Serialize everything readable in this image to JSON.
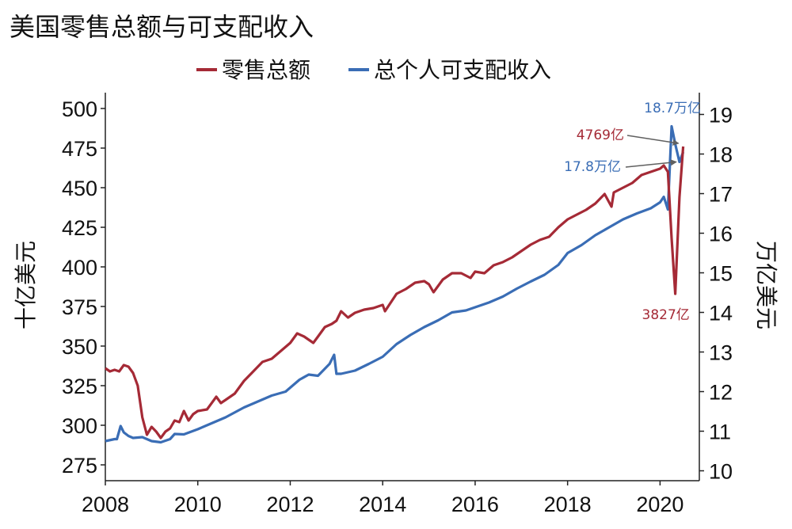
{
  "chart_data": {
    "type": "line",
    "title": "美国零售总额与可支配收入",
    "xlabel": "",
    "ylabel_left": "十亿美元",
    "ylabel_right": "万亿美元",
    "xlim": [
      2008,
      2020.85
    ],
    "ylim_left": [
      265,
      510
    ],
    "ylim_right": [
      9.75,
      19.55
    ],
    "x_ticks": [
      "2008",
      "2010",
      "2012",
      "2014",
      "2016",
      "2018",
      "2020"
    ],
    "y_ticks_left": [
      "275",
      "300",
      "325",
      "350",
      "375",
      "400",
      "425",
      "450",
      "475",
      "500"
    ],
    "y_ticks_right": [
      "10",
      "11",
      "12",
      "13",
      "14",
      "15",
      "16",
      "17",
      "18",
      "19"
    ],
    "legend_placement": "top-center",
    "grid": false,
    "colors": {
      "retail": "#A52A36",
      "income": "#3A6DB5",
      "arrow": "#606060"
    },
    "series": [
      {
        "name": "零售总额",
        "axis": "left",
        "x": [
          2008.0,
          2008.1,
          2008.2,
          2008.3,
          2008.4,
          2008.5,
          2008.6,
          2008.7,
          2008.8,
          2008.9,
          2009.0,
          2009.1,
          2009.2,
          2009.3,
          2009.4,
          2009.5,
          2009.6,
          2009.7,
          2009.8,
          2009.9,
          2010.0,
          2010.2,
          2010.4,
          2010.5,
          2010.6,
          2010.8,
          2011.0,
          2011.2,
          2011.4,
          2011.6,
          2011.8,
          2012.0,
          2012.15,
          2012.3,
          2012.5,
          2012.6,
          2012.75,
          2012.9,
          2013.0,
          2013.1,
          2013.25,
          2013.4,
          2013.6,
          2013.8,
          2014.0,
          2014.05,
          2014.3,
          2014.5,
          2014.7,
          2014.9,
          2015.0,
          2015.1,
          2015.3,
          2015.5,
          2015.7,
          2015.9,
          2016.0,
          2016.2,
          2016.4,
          2016.6,
          2016.8,
          2017.0,
          2017.2,
          2017.4,
          2017.6,
          2017.8,
          2018.0,
          2018.2,
          2018.4,
          2018.6,
          2018.8,
          2018.95,
          2019.0,
          2019.2,
          2019.4,
          2019.6,
          2019.8,
          2020.0,
          2020.08,
          2020.17,
          2020.25,
          2020.33,
          2020.42,
          2020.5
        ],
        "values": [
          336,
          334,
          335,
          334,
          338,
          337,
          333,
          325,
          305,
          294,
          299,
          296,
          292,
          296,
          298,
          303,
          302,
          309,
          303,
          307,
          309,
          310,
          318,
          314,
          316,
          320,
          328,
          334,
          340,
          342,
          347,
          352,
          358,
          356,
          352,
          356,
          362,
          364,
          366,
          372,
          368,
          371,
          373,
          374,
          376,
          372,
          383,
          386,
          390,
          391,
          389,
          384,
          392,
          396,
          396,
          393,
          397,
          396,
          401,
          403,
          406,
          410,
          414,
          417,
          419,
          425,
          430,
          433,
          436,
          440,
          446,
          438,
          447,
          450,
          453,
          458,
          460,
          462,
          464,
          460,
          418,
          383,
          444,
          476
        ]
      },
      {
        "name": "总个人可支配收入",
        "axis": "right",
        "x": [
          2008.0,
          2008.2,
          2008.25,
          2008.33,
          2008.4,
          2008.5,
          2008.6,
          2008.8,
          2009.0,
          2009.2,
          2009.4,
          2009.5,
          2009.7,
          2010.0,
          2010.3,
          2010.6,
          2011.0,
          2011.3,
          2011.6,
          2011.9,
          2012.2,
          2012.4,
          2012.6,
          2012.85,
          2012.95,
          2013.0,
          2013.1,
          2013.4,
          2013.7,
          2014.0,
          2014.3,
          2014.6,
          2014.9,
          2015.2,
          2015.5,
          2015.8,
          2016.0,
          2016.3,
          2016.6,
          2016.9,
          2017.2,
          2017.5,
          2017.8,
          2018.0,
          2018.3,
          2018.6,
          2018.9,
          2019.2,
          2019.5,
          2019.8,
          2020.0,
          2020.08,
          2020.17,
          2020.25,
          2020.33,
          2020.42,
          2020.5
        ],
        "values": [
          10.75,
          10.8,
          10.8,
          11.13,
          10.97,
          10.88,
          10.83,
          10.85,
          10.75,
          10.72,
          10.8,
          10.93,
          10.92,
          11.05,
          11.2,
          11.35,
          11.6,
          11.75,
          11.9,
          12.0,
          12.3,
          12.43,
          12.4,
          12.7,
          12.93,
          12.45,
          12.45,
          12.53,
          12.7,
          12.88,
          13.2,
          13.43,
          13.63,
          13.8,
          14.0,
          14.05,
          14.13,
          14.25,
          14.4,
          14.6,
          14.78,
          14.95,
          15.2,
          15.5,
          15.7,
          15.95,
          16.15,
          16.35,
          16.5,
          16.63,
          16.78,
          16.92,
          16.6,
          18.7,
          18.25,
          17.8,
          18.05
        ]
      }
    ],
    "annotations": [
      {
        "text": "18.7万亿",
        "series": "总个人可支配收入"
      },
      {
        "text": "4769亿",
        "series": "零售总额"
      },
      {
        "text": "17.8万亿",
        "series": "总个人可支配收入"
      },
      {
        "text": "3827亿",
        "series": "零售总额"
      }
    ]
  }
}
